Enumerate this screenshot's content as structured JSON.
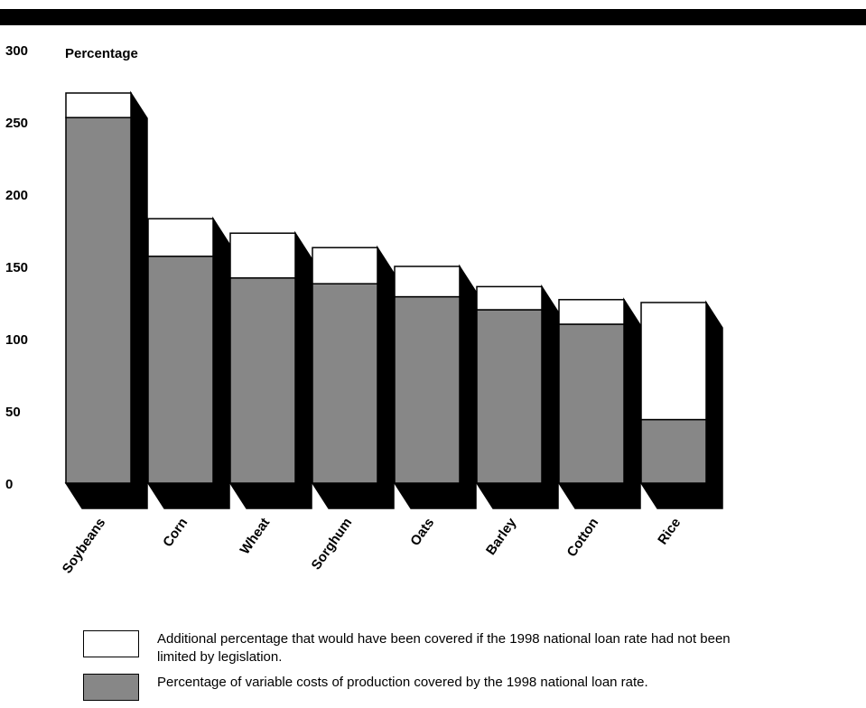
{
  "chart_data": {
    "type": "bar",
    "stacked": true,
    "ylabel": "Percentage",
    "ylim": [
      0,
      300
    ],
    "yticks": [
      0,
      50,
      100,
      150,
      200,
      250,
      300
    ],
    "categories": [
      "Soybeans",
      "Corn",
      "Wheat",
      "Sorghum",
      "Oats",
      "Barley",
      "Cotton",
      "Rice"
    ],
    "series": [
      {
        "name": "Percentage of variable costs of production covered by the 1998 national loan rate.",
        "color": "#878787",
        "values": [
          253,
          157,
          142,
          138,
          129,
          120,
          110,
          44
        ]
      },
      {
        "name": "Additional percentage that would have been covered if the 1998 national loan rate had not been limited by legislation.",
        "color": "#ffffff",
        "values": [
          17,
          26,
          31,
          25,
          21,
          16,
          17,
          81
        ]
      }
    ]
  },
  "legend": {
    "items": [
      {
        "label": "Additional percentage that would have been covered if the 1998 national loan rate had not been limited by legislation.",
        "color": "#ffffff"
      },
      {
        "label": "Percentage of variable costs of production covered by the 1998 national loan rate.",
        "color": "#878787"
      }
    ]
  }
}
